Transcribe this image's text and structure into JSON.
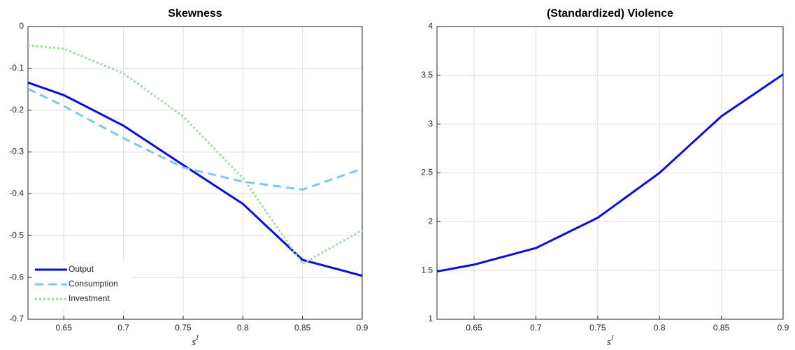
{
  "chart_data": [
    {
      "type": "line",
      "title": "Skewness",
      "x": [
        0.62,
        0.65,
        0.7,
        0.75,
        0.8,
        0.85,
        0.9
      ],
      "series": [
        {
          "name": "Output",
          "color": "#0a0ae6",
          "dash": "solid",
          "values": [
            -0.134,
            -0.164,
            -0.237,
            -0.331,
            -0.424,
            -0.558,
            -0.596
          ]
        },
        {
          "name": "Consumption",
          "color": "#7ec8ec",
          "dash": "dashed",
          "values": [
            -0.149,
            -0.19,
            -0.267,
            -0.337,
            -0.371,
            -0.39,
            -0.34
          ]
        },
        {
          "name": "Investment",
          "color": "#a3dca3",
          "dash": "dotted",
          "values": [
            -0.045,
            -0.053,
            -0.112,
            -0.215,
            -0.362,
            -0.567,
            -0.487
          ]
        }
      ],
      "xlim": [
        0.62,
        0.9
      ],
      "xticks": [
        0.65,
        0.7,
        0.75,
        0.8,
        0.85,
        0.9
      ],
      "ylim": [
        -0.7,
        0
      ],
      "yticks": [
        0,
        -0.1,
        -0.2,
        -0.3,
        -0.4,
        -0.5,
        -0.6,
        -0.7
      ],
      "xlabel": {
        "base": "s",
        "sup": "I"
      },
      "grid": true,
      "legend": "lower-left"
    },
    {
      "type": "line",
      "title": "(Standardized) Violence",
      "x": [
        0.62,
        0.65,
        0.7,
        0.75,
        0.8,
        0.85,
        0.9
      ],
      "values": [
        1.49,
        1.56,
        1.73,
        2.04,
        2.5,
        3.08,
        3.51
      ],
      "color": "#0a0ae6",
      "xlim": [
        0.62,
        0.9
      ],
      "xticks": [
        0.65,
        0.7,
        0.75,
        0.8,
        0.85,
        0.9
      ],
      "ylim": [
        1,
        4
      ],
      "yticks": [
        1,
        1.5,
        2,
        2.5,
        3,
        3.5,
        4
      ],
      "xlabel": {
        "base": "s",
        "sup": "I"
      },
      "grid": true
    }
  ]
}
